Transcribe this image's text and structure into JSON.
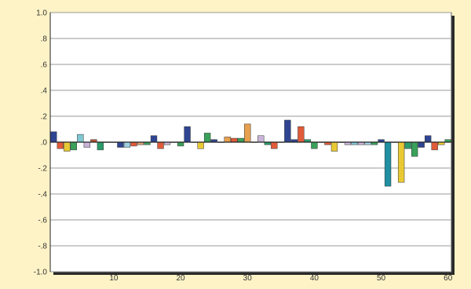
{
  "chart_data": {
    "type": "bar",
    "title": "",
    "xlabel": "",
    "ylabel": "",
    "xlim": [
      1,
      60
    ],
    "ylim": [
      -1.0,
      1.0
    ],
    "grid": true,
    "legend": "none",
    "y_ticks": [
      1.0,
      0.8,
      0.6,
      0.4,
      0.2,
      0.0,
      -0.2,
      -0.4,
      -0.6,
      -0.8,
      -1.0
    ],
    "y_tick_labels": [
      "1.0",
      ".8",
      ".6",
      ".4",
      ".2",
      ".0",
      "-.2",
      "-.4",
      "-.6",
      "-.8",
      "-1.0"
    ],
    "x_ticks": [
      10,
      20,
      30,
      40,
      50,
      60
    ],
    "x_tick_labels": [
      "10",
      "20",
      "30",
      "40",
      "50",
      "60"
    ],
    "lags": [
      1,
      2,
      3,
      4,
      5,
      6,
      7,
      8,
      9,
      10,
      11,
      12,
      13,
      14,
      15,
      16,
      17,
      18,
      19,
      20,
      21,
      22,
      23,
      24,
      25,
      26,
      27,
      28,
      29,
      30,
      31,
      32,
      33,
      34,
      35,
      36,
      37,
      38,
      39,
      40,
      41,
      42,
      43,
      44,
      45,
      46,
      47,
      48,
      49,
      50,
      51,
      52,
      53,
      54,
      55,
      56,
      57,
      58,
      59,
      60
    ],
    "values": [
      0.08,
      -0.05,
      -0.07,
      -0.06,
      0.06,
      -0.04,
      0.02,
      -0.06,
      0.0,
      0.0,
      -0.04,
      -0.04,
      -0.03,
      -0.02,
      -0.02,
      0.05,
      -0.05,
      -0.02,
      0.0,
      -0.03,
      0.12,
      0.0,
      -0.05,
      0.07,
      0.02,
      0.0,
      0.04,
      0.03,
      0.03,
      0.14,
      0.0,
      0.05,
      -0.02,
      -0.05,
      0.0,
      0.17,
      0.02,
      0.12,
      0.02,
      -0.05,
      0.0,
      -0.02,
      -0.07,
      0.0,
      -0.02,
      -0.02,
      -0.02,
      -0.02,
      -0.02,
      0.02,
      -0.34,
      0.0,
      -0.31,
      -0.05,
      -0.11,
      -0.04,
      0.05,
      -0.06,
      -0.02,
      0.02
    ],
    "bar_colors": [
      "#2f4592",
      "#e05b39",
      "#e8c934",
      "#3aa05a",
      "#7fc6d1",
      "#c9b3d8",
      "#b5502f",
      "#2c9b6a",
      "#2f4592",
      "#e7a04f",
      "#2f4592",
      "#9dcfe0",
      "#e05b39",
      "#d8a070",
      "#3aa05a",
      "#2f4592",
      "#e05b39",
      "#c9b3d8",
      "#e05b39",
      "#3aa05a",
      "#2f4592",
      "#e7a04f",
      "#e8c934",
      "#3aa05a",
      "#2f4592",
      "#2c9b6a",
      "#e7a04f",
      "#e05b39",
      "#3aa05a",
      "#e7a04f",
      "#2f4592",
      "#c9b3d8",
      "#2c9b6a",
      "#e05b39",
      "#2f4592",
      "#2f4592",
      "#2f4592",
      "#e05b39",
      "#2c9b6a",
      "#3aa05a",
      "#2f4592",
      "#e05b39",
      "#e8c934",
      "#2f4592",
      "#c9b3d8",
      "#7fc6d1",
      "#c9b3d8",
      "#9dcfe0",
      "#3aa05a",
      "#2f4592",
      "#1f8fa1",
      "#2f4592",
      "#e8c934",
      "#2c9b6a",
      "#3aa05a",
      "#2f4592",
      "#2f4592",
      "#e05b39",
      "#e8c934",
      "#3aa05a"
    ]
  }
}
